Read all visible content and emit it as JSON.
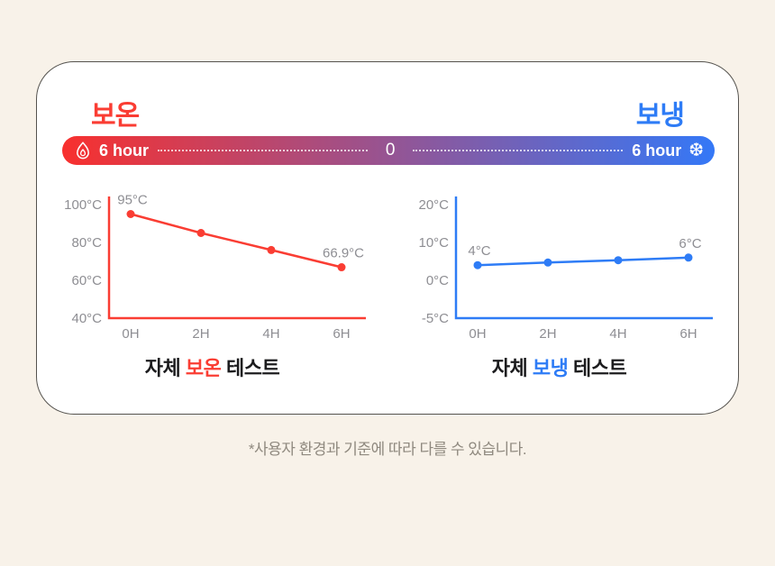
{
  "page": {
    "background_color": "#f8f2e9",
    "note": "*사용자 환경과 기준에 따라 다를 수 있습니다."
  },
  "header": {
    "hot_label": "보온",
    "cold_label": "보냉",
    "hot_color": "#fa3d33",
    "cold_color": "#2e7cf6"
  },
  "timeline_bar": {
    "left_icon": "flame-icon",
    "left_label": "6 hour",
    "center_label": "0",
    "right_label": "6 hour",
    "right_icon": "snowflake-icon",
    "snowflake_glyph": "❆",
    "gradient_start": "#f8302e",
    "gradient_end": "#3478f7"
  },
  "chart_data": [
    {
      "type": "line",
      "name": "self-heat-retention-test",
      "title_prefix": "자체 ",
      "title_accent": "보온",
      "title_suffix": " 테스트",
      "accent_color": "#fa3d33",
      "axis_color": "#fa3d33",
      "line_color": "#fa3d33",
      "tick_label_color": "#8e8e93",
      "categories": [
        "0H",
        "2H",
        "4H",
        "6H"
      ],
      "values": [
        95,
        85,
        76,
        66.9
      ],
      "ytick_labels": [
        "100°C",
        "80°C",
        "60°C",
        "40°C"
      ],
      "ytick_values": [
        100,
        80,
        60,
        40
      ],
      "first_point_label": "95°C",
      "last_point_label": "66.9°C",
      "grid": false,
      "legend": false
    },
    {
      "type": "line",
      "name": "self-cold-retention-test",
      "title_prefix": "자체 ",
      "title_accent": "보냉",
      "title_suffix": " 테스트",
      "accent_color": "#2e7cf6",
      "axis_color": "#2e7cf6",
      "line_color": "#2e7cf6",
      "tick_label_color": "#8e8e93",
      "categories": [
        "0H",
        "2H",
        "4H",
        "6H"
      ],
      "values": [
        4,
        4.7,
        5.3,
        6
      ],
      "ytick_labels": [
        "20°C",
        "10°C",
        "0°C",
        "-5°C"
      ],
      "ytick_values": [
        20,
        10,
        0,
        -5
      ],
      "first_point_label": "4°C",
      "last_point_label": "6°C",
      "grid": false,
      "legend": false
    }
  ]
}
